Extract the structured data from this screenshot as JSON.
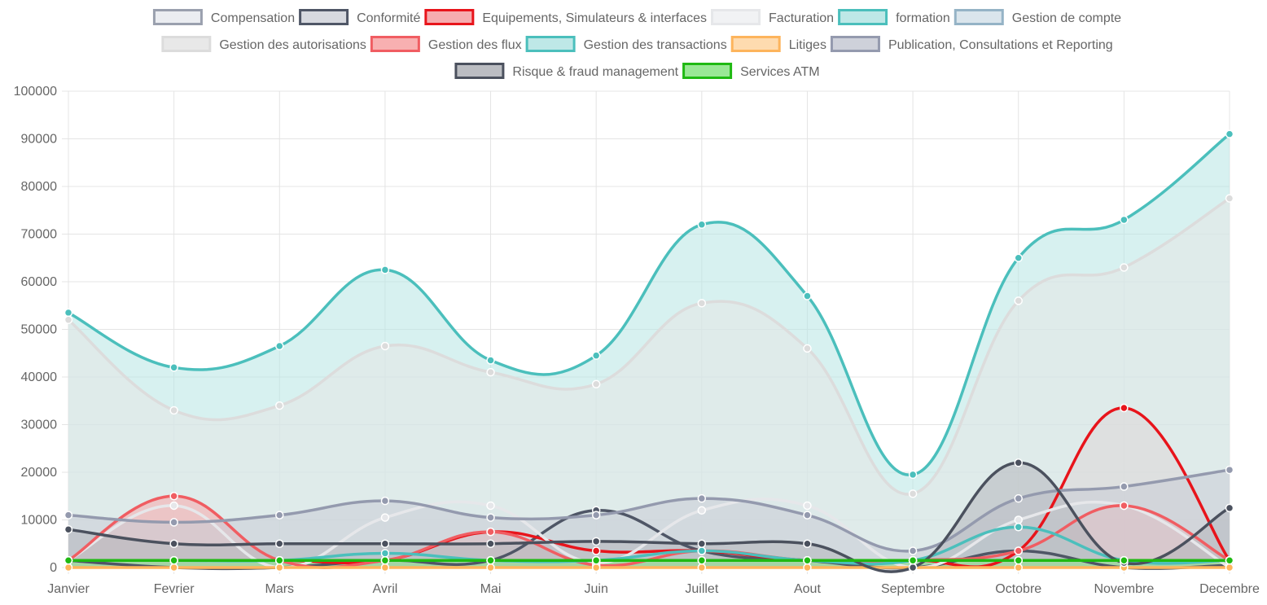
{
  "chart_data": {
    "type": "area",
    "categories": [
      "Janvier",
      "Fevrier",
      "Mars",
      "Avril",
      "Mai",
      "Juin",
      "Juillet",
      "Aout",
      "Septembre",
      "Octobre",
      "Novembre",
      "Decembre"
    ],
    "ylim": [
      0,
      100000
    ],
    "yticks": [
      0,
      10000,
      20000,
      30000,
      40000,
      50000,
      60000,
      70000,
      80000,
      90000,
      100000
    ],
    "grid": true,
    "legend_position": "top",
    "series": [
      {
        "name": "Compensation",
        "color": "#9aa0ae",
        "fill": "#e9ebf0",
        "values": [
          1500,
          1500,
          1500,
          1500,
          1500,
          1500,
          1500,
          1500,
          1500,
          1500,
          1500,
          1500
        ]
      },
      {
        "name": "Conformité",
        "color": "#4f5666",
        "fill": "#d3d5db",
        "values": [
          1500,
          0,
          0,
          1500,
          1500,
          12000,
          3500,
          1500,
          0,
          3500,
          0,
          500
        ]
      },
      {
        "name": "Equipements, Simulateurs & interfaces",
        "color": "#e8141b",
        "fill": "#f5a3a6",
        "values": [
          1500,
          1500,
          1500,
          1500,
          7500,
          3500,
          3500,
          1500,
          1500,
          3500,
          33500,
          1500
        ]
      },
      {
        "name": "Facturation",
        "color": "#e6e7ea",
        "fill": "#f0f1f3",
        "values": [
          1500,
          13000,
          0,
          10500,
          13000,
          1000,
          12000,
          13000,
          0,
          10000,
          13000,
          0
        ]
      },
      {
        "name": "formation",
        "color": "#4bbfbc",
        "fill": "#b7e5e4",
        "values": [
          53500,
          42000,
          46500,
          62500,
          43500,
          44500,
          72000,
          57000,
          19500,
          65000,
          73000,
          91000
        ]
      },
      {
        "name": "Gestion de compte",
        "color": "#95b3c6",
        "fill": "#d6e2ea",
        "values": [
          1500,
          1500,
          1500,
          1500,
          1500,
          1500,
          1500,
          1500,
          1500,
          1500,
          1500,
          1500
        ]
      },
      {
        "name": "Gestion des autorisations",
        "color": "#dcdcdc",
        "fill": "#e6e6e6",
        "values": [
          52000,
          33000,
          34000,
          46500,
          41000,
          38500,
          55500,
          46000,
          15500,
          56000,
          63000,
          77500
        ]
      },
      {
        "name": "Gestion des flux",
        "color": "#f05d62",
        "fill": "#f7a7a9",
        "values": [
          1500,
          15000,
          1500,
          1500,
          7500,
          500,
          3500,
          1500,
          1500,
          3500,
          13000,
          1500
        ]
      },
      {
        "name": "Gestion des transactions",
        "color": "#4bbfbc",
        "fill": "#b7e5e4",
        "values": [
          1500,
          1500,
          1500,
          3000,
          1500,
          1500,
          3500,
          1500,
          1500,
          8500,
          1500,
          1500
        ]
      },
      {
        "name": "Litiges",
        "color": "#fdb45c",
        "fill": "#fed7a6",
        "values": [
          0,
          0,
          0,
          0,
          0,
          0,
          0,
          0,
          0,
          0,
          0,
          0
        ]
      },
      {
        "name": "Publication, Consultations et Reporting",
        "color": "#949aae",
        "fill": "#c9ccd6",
        "values": [
          11000,
          9500,
          11000,
          14000,
          10500,
          11000,
          14500,
          11000,
          3500,
          14500,
          17000,
          20500
        ]
      },
      {
        "name": "Risque & fraud management",
        "color": "#4b515e",
        "fill": "#b4b6bb",
        "values": [
          8000,
          5000,
          5000,
          5000,
          5000,
          5500,
          5000,
          5000,
          0,
          22000,
          1000,
          12500
        ]
      },
      {
        "name": "Services ATM",
        "color": "#1fb912",
        "fill": "#8ee68a",
        "values": [
          1500,
          1500,
          1500,
          1500,
          1500,
          1500,
          1500,
          1500,
          1500,
          1500,
          1500,
          1500
        ]
      }
    ]
  }
}
